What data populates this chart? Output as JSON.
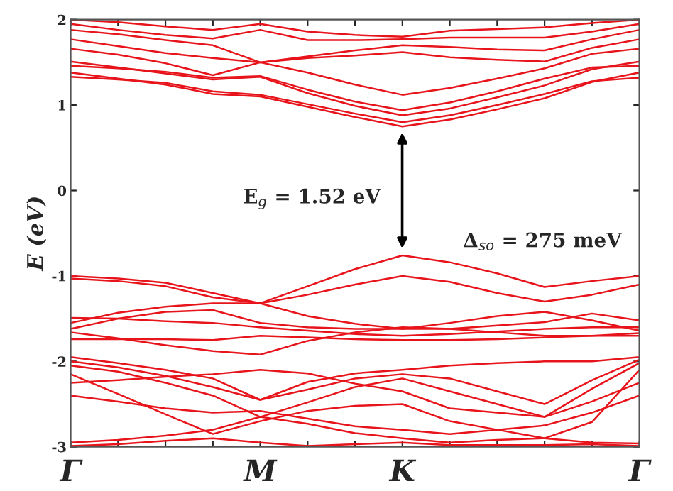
{
  "chart_data": {
    "type": "line",
    "ylabel": "E (eV)",
    "categories": [
      "Γ",
      null,
      null,
      null,
      "M",
      null,
      null,
      "K",
      null,
      null,
      null,
      null,
      "Γ"
    ],
    "ylim": [
      -3,
      2
    ],
    "yticks": [
      -3,
      -2,
      -1,
      0,
      1,
      2
    ],
    "grid": false,
    "legend": false,
    "marker": "none",
    "line_style": "solid",
    "annotations": [
      "E$_{g}$ = 1.52 eV",
      "Δ$_{so}$ = 275 meV"
    ],
    "series": [
      {
        "color": "#e8141b",
        "values": [
          1.38,
          1.31,
          1.24,
          1.13,
          1.1,
          0.98,
          0.86,
          0.75,
          0.83,
          0.95,
          1.08,
          1.27,
          1.38
        ]
      },
      {
        "color": "#e8141b",
        "values": [
          1.33,
          1.3,
          1.26,
          1.16,
          1.12,
          1.01,
          0.9,
          0.8,
          0.88,
          1.0,
          1.13,
          1.28,
          1.32
        ]
      },
      {
        "color": "#e8141b",
        "values": [
          1.51,
          1.44,
          1.37,
          1.3,
          1.33,
          1.14,
          0.99,
          0.88,
          0.96,
          1.09,
          1.23,
          1.42,
          1.51
        ]
      },
      {
        "color": "#e8141b",
        "values": [
          1.46,
          1.43,
          1.39,
          1.32,
          1.34,
          1.18,
          1.04,
          0.94,
          1.03,
          1.16,
          1.31,
          1.44,
          1.46
        ]
      },
      {
        "color": "#e8141b",
        "values": [
          1.66,
          1.59,
          1.49,
          1.35,
          1.5,
          1.38,
          1.24,
          1.12,
          1.2,
          1.31,
          1.43,
          1.6,
          1.66
        ]
      },
      {
        "color": "#e8141b",
        "values": [
          1.77,
          1.69,
          1.61,
          1.55,
          1.5,
          1.55,
          1.58,
          1.62,
          1.56,
          1.53,
          1.51,
          1.67,
          1.77
        ]
      },
      {
        "color": "#e8141b",
        "values": [
          1.88,
          1.83,
          1.76,
          1.7,
          1.5,
          1.57,
          1.64,
          1.7,
          1.68,
          1.65,
          1.64,
          1.77,
          1.88
        ]
      },
      {
        "color": "#e8141b",
        "values": [
          1.95,
          1.88,
          1.82,
          1.78,
          1.88,
          1.76,
          1.76,
          1.77,
          1.79,
          1.79,
          1.79,
          1.86,
          1.95
        ]
      },
      {
        "color": "#e8141b",
        "values": [
          2.0,
          1.97,
          1.92,
          1.88,
          1.95,
          1.86,
          1.82,
          1.8,
          1.87,
          1.89,
          1.91,
          1.96,
          2.0
        ]
      },
      {
        "color": "#e8141b",
        "values": [
          -1.0,
          -1.03,
          -1.08,
          -1.2,
          -1.32,
          -1.12,
          -0.92,
          -0.76,
          -0.84,
          -0.97,
          -1.13,
          -1.06,
          -1.0
        ]
      },
      {
        "color": "#e8141b",
        "values": [
          -1.03,
          -1.06,
          -1.12,
          -1.25,
          -1.32,
          -1.22,
          -1.1,
          -1.0,
          -1.07,
          -1.2,
          -1.3,
          -1.22,
          -1.1
        ]
      },
      {
        "color": "#e8141b",
        "values": [
          -1.55,
          -1.43,
          -1.36,
          -1.32,
          -1.32,
          -1.47,
          -1.56,
          -1.62,
          -1.62,
          -1.58,
          -1.54,
          -1.44,
          -1.52
        ]
      },
      {
        "color": "#e8141b",
        "values": [
          -1.62,
          -1.5,
          -1.42,
          -1.4,
          -1.55,
          -1.6,
          -1.62,
          -1.62,
          -1.55,
          -1.47,
          -1.42,
          -1.52,
          -1.64
        ]
      },
      {
        "color": "#e8141b",
        "values": [
          -1.49,
          -1.5,
          -1.53,
          -1.55,
          -1.6,
          -1.64,
          -1.68,
          -1.7,
          -1.68,
          -1.65,
          -1.62,
          -1.6,
          -1.6
        ]
      },
      {
        "color": "#e8141b",
        "values": [
          -1.66,
          -1.73,
          -1.81,
          -1.88,
          -1.92,
          -1.76,
          -1.66,
          -1.6,
          -1.62,
          -1.66,
          -1.7,
          -1.7,
          -1.7
        ]
      },
      {
        "color": "#e8141b",
        "values": [
          -1.74,
          -1.74,
          -1.74,
          -1.75,
          -1.7,
          -1.72,
          -1.74,
          -1.75,
          -1.75,
          -1.74,
          -1.72,
          -1.7,
          -1.67
        ]
      },
      {
        "color": "#e8141b",
        "values": [
          -1.95,
          -2.02,
          -2.1,
          -2.2,
          -2.45,
          -2.24,
          -2.14,
          -2.1,
          -2.05,
          -2.02,
          -2.0,
          -2.0,
          -1.95
        ]
      },
      {
        "color": "#e8141b",
        "values": [
          -2.0,
          -2.07,
          -2.17,
          -2.3,
          -2.45,
          -2.33,
          -2.2,
          -2.15,
          -2.2,
          -2.35,
          -2.5,
          -2.22,
          -1.98
        ]
      },
      {
        "color": "#e8141b",
        "values": [
          -2.05,
          -2.12,
          -2.25,
          -2.4,
          -2.65,
          -2.48,
          -2.3,
          -2.2,
          -2.35,
          -2.5,
          -2.65,
          -2.32,
          -2.02
        ]
      },
      {
        "color": "#e8141b",
        "values": [
          -2.25,
          -2.22,
          -2.18,
          -2.15,
          -2.1,
          -2.14,
          -2.26,
          -2.35,
          -2.55,
          -2.6,
          -2.65,
          -2.47,
          -2.25
        ]
      },
      {
        "color": "#e8141b",
        "values": [
          -2.4,
          -2.47,
          -2.55,
          -2.6,
          -2.58,
          -2.67,
          -2.76,
          -2.8,
          -2.85,
          -2.8,
          -2.75,
          -2.6,
          -2.4
        ]
      },
      {
        "color": "#e8141b",
        "values": [
          -2.15,
          -2.38,
          -2.62,
          -2.85,
          -2.7,
          -2.58,
          -2.52,
          -2.5,
          -2.7,
          -2.8,
          -2.9,
          -2.71,
          -2.1
        ]
      },
      {
        "color": "#e8141b",
        "values": [
          -2.95,
          -2.92,
          -2.87,
          -2.8,
          -2.65,
          -2.73,
          -2.84,
          -2.9,
          -2.95,
          -2.92,
          -2.9,
          -2.95,
          -2.96
        ]
      },
      {
        "color": "#e8141b",
        "values": [
          -2.99,
          -2.97,
          -2.93,
          -2.9,
          -2.95,
          -2.99,
          -2.97,
          -2.95,
          -2.98,
          -2.98,
          -2.98,
          -2.97,
          -2.99
        ]
      }
    ]
  }
}
